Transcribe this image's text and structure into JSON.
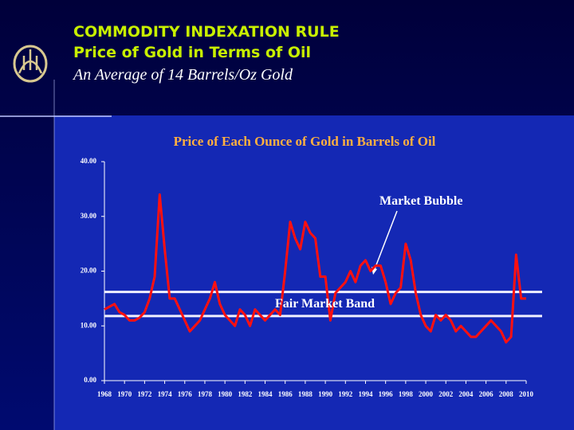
{
  "header": {
    "title": "COMMODITY INDEXATION RULE",
    "subtitle": "Price of Gold in Terms of Oil",
    "note": "An Average of 14 Barrels/Oz Gold"
  },
  "chart_data": {
    "type": "line",
    "title": "Price of Each Ounce of Gold in Barrels of Oil",
    "annotations": [
      "Market Bubble",
      "Fair Market Band"
    ],
    "x": [
      1968.0,
      1968.5,
      1969.0,
      1969.5,
      1970.0,
      1970.5,
      1971.0,
      1971.5,
      1972.0,
      1972.5,
      1973.0,
      1973.5,
      1974.0,
      1974.5,
      1975.0,
      1975.5,
      1976.0,
      1976.5,
      1977.0,
      1977.5,
      1978.0,
      1978.5,
      1979.0,
      1979.5,
      1980.0,
      1980.5,
      1981.0,
      1981.5,
      1982.0,
      1982.5,
      1983.0,
      1983.5,
      1984.0,
      1984.5,
      1985.0,
      1985.5,
      1986.0,
      1986.5,
      1987.0,
      1987.5,
      1988.0,
      1988.5,
      1989.0,
      1989.5,
      1990.0,
      1990.5,
      1991.0,
      1991.5,
      1992.0,
      1992.5,
      1993.0,
      1993.5,
      1994.0,
      1994.5,
      1995.0,
      1995.5,
      1996.0,
      1996.5,
      1997.0,
      1997.5,
      1998.0,
      1998.5,
      1999.0,
      1999.5,
      2000.0,
      2000.5,
      2001.0,
      2001.5,
      2002.0,
      2002.5,
      2003.0,
      2003.5,
      2004.0,
      2004.5,
      2005.0,
      2005.5,
      2006.0,
      2006.5,
      2007.0,
      2007.5,
      2008.0,
      2008.5,
      2009.0,
      2009.5,
      2010.0
    ],
    "series": [
      {
        "color": "#ff1010",
        "values": [
          13,
          13.5,
          14,
          12.5,
          12,
          11,
          11,
          11.5,
          12.5,
          15,
          19,
          34,
          24,
          15,
          15,
          13,
          11,
          9,
          10,
          11,
          13,
          15,
          18,
          14,
          12,
          11,
          10,
          13,
          12,
          10,
          13,
          12,
          11,
          12,
          13,
          12,
          20,
          29,
          26,
          24,
          29,
          27,
          26,
          19,
          19,
          11,
          16,
          17,
          18,
          20,
          18,
          21,
          22,
          20,
          21,
          21,
          18,
          14,
          16,
          17,
          25,
          22,
          16,
          12,
          10,
          9,
          12,
          11,
          12,
          11,
          9,
          10,
          9,
          8,
          8,
          9,
          10,
          11,
          10,
          9,
          7,
          8,
          23,
          15,
          15
        ]
      }
    ],
    "reference_lines": [
      16.2,
      11.8
    ],
    "reference_color": "#f0f0ff",
    "xlim": [
      1968,
      2010
    ],
    "xticks": [
      1968,
      1970,
      1972,
      1974,
      1976,
      1978,
      1980,
      1982,
      1984,
      1986,
      1988,
      1990,
      1992,
      1994,
      1996,
      1998,
      2000,
      2002,
      2004,
      2006,
      2008,
      2010
    ],
    "ylim": [
      0,
      40
    ],
    "yticks": [
      {
        "value": 0,
        "label": "0.00"
      },
      {
        "value": 10,
        "label": "10.00"
      },
      {
        "value": 20,
        "label": "20.00"
      },
      {
        "value": 30,
        "label": "30.00"
      },
      {
        "value": 40,
        "label": "40.00"
      }
    ]
  }
}
